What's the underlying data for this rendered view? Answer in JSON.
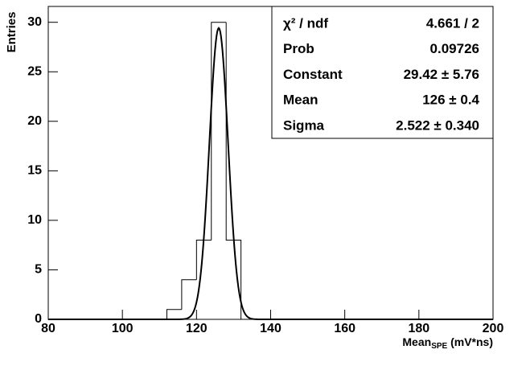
{
  "chart_data": {
    "type": "histogram",
    "bins": [
      112,
      116,
      120,
      124,
      128,
      132
    ],
    "counts": [
      1,
      4,
      8,
      30,
      8
    ],
    "color": "#000000",
    "xlim": [
      80,
      200
    ],
    "xticks": [
      80,
      100,
      120,
      140,
      160,
      180,
      200
    ],
    "ylim": [
      0,
      31.6
    ],
    "yticks": [
      0,
      5,
      10,
      15,
      20,
      25,
      30
    ],
    "y_label": "Entries",
    "x_label": {
      "main": "Mean",
      "sub": "SPE",
      "unit": " (mV*ns)"
    },
    "fit": {
      "constant": 29.42,
      "mean": 126,
      "sigma": 2.522
    },
    "stats": [
      {
        "name": "χ² / ndf",
        "text": "4.661 / 2"
      },
      {
        "name": "Prob",
        "text": "0.09726"
      },
      {
        "name": "Constant",
        "text": "29.42 ± 5.76"
      },
      {
        "name": "Mean",
        "text": "126 ± 0.4"
      },
      {
        "name": "Sigma",
        "text": "2.522 ± 0.340"
      }
    ]
  }
}
